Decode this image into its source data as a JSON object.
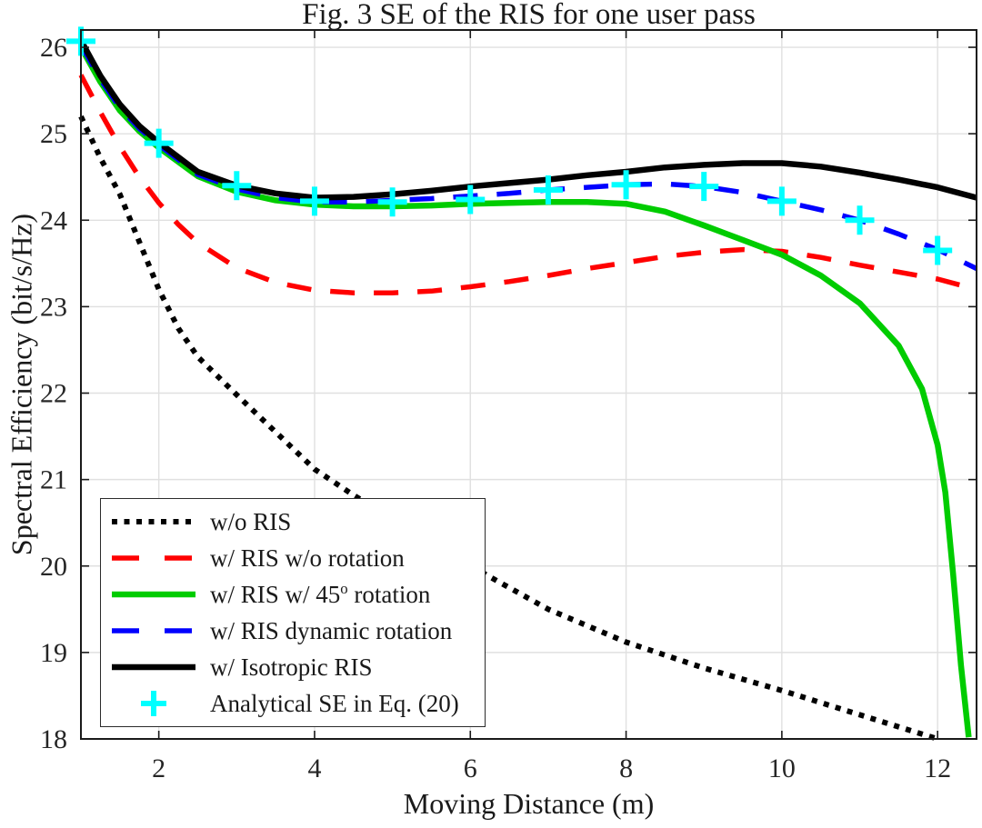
{
  "chart_data": {
    "type": "line",
    "title": "Fig. 3  SE of the RIS for one user pass",
    "xlabel": "Moving Distance (m)",
    "ylabel": "Spectral Efficiency (bit/s/Hz)",
    "xlim": [
      1,
      12.5
    ],
    "ylim": [
      18,
      26.2
    ],
    "xticks": [
      2,
      4,
      6,
      8,
      10,
      12
    ],
    "yticks": [
      18,
      19,
      20,
      21,
      22,
      23,
      24,
      25,
      26
    ],
    "grid": true,
    "legend_position": "bottom-left",
    "colors": {
      "grid": "#e0e0e0",
      "axis": "#1a1a1a",
      "tick_text": "#262626",
      "background": "#ffffff"
    },
    "series": [
      {
        "id": "wo-ris",
        "label": "w/o RIS",
        "color": "#000000",
        "style": "dotted",
        "width": 6,
        "x": [
          1,
          1.25,
          1.5,
          1.75,
          2,
          2.25,
          2.5,
          3,
          3.5,
          4,
          4.5,
          5,
          5.5,
          6.2,
          7,
          8,
          9,
          10,
          11,
          12
        ],
        "y": [
          25.2,
          24.72,
          24.3,
          23.75,
          23.2,
          22.75,
          22.42,
          21.98,
          21.55,
          21.12,
          20.82,
          20.55,
          20.32,
          19.9,
          19.5,
          19.12,
          18.82,
          18.56,
          18.28,
          18.0
        ]
      },
      {
        "id": "ris-wo-rotation",
        "label": "w/ RIS w/o rotation",
        "color": "#ff0000",
        "style": "dashed",
        "width": 5.5,
        "x": [
          1,
          1.25,
          1.5,
          1.75,
          2,
          2.25,
          2.5,
          3,
          3.5,
          4,
          4.5,
          5,
          5.5,
          6,
          6.5,
          7,
          7.5,
          8,
          8.5,
          9,
          9.5,
          10,
          10.5,
          11,
          11.5,
          12,
          12.5
        ],
        "y": [
          25.68,
          25.25,
          24.85,
          24.5,
          24.2,
          23.95,
          23.74,
          23.45,
          23.28,
          23.19,
          23.16,
          23.16,
          23.18,
          23.23,
          23.29,
          23.36,
          23.44,
          23.51,
          23.58,
          23.63,
          23.66,
          23.64,
          23.57,
          23.48,
          23.4,
          23.32,
          23.2
        ]
      },
      {
        "id": "ris-45-rotation",
        "label": "w/ RIS w/ 45o rotation",
        "label_parts": {
          "pre": "w/ RIS w/ 45",
          "sup": "o",
          "post": " rotation"
        },
        "color": "#00cc00",
        "style": "solid",
        "width": 6.5,
        "x": [
          1,
          1.25,
          1.5,
          1.75,
          2,
          2.5,
          3,
          3.5,
          4,
          4.5,
          5,
          5.5,
          6,
          6.5,
          7,
          7.5,
          8,
          8.5,
          9,
          9.5,
          10,
          10.5,
          11,
          11.5,
          11.8,
          12,
          12.1,
          12.2,
          12.3,
          12.4
        ],
        "y": [
          26.0,
          25.6,
          25.27,
          25.03,
          24.84,
          24.51,
          24.33,
          24.23,
          24.18,
          24.16,
          24.16,
          24.17,
          24.19,
          24.2,
          24.21,
          24.21,
          24.19,
          24.1,
          23.94,
          23.77,
          23.6,
          23.36,
          23.04,
          22.55,
          22.05,
          21.4,
          20.85,
          19.9,
          18.85,
          18.02
        ]
      },
      {
        "id": "ris-dynamic-rotation",
        "label": "w/ RIS dynamic rotation",
        "color": "#0000ff",
        "style": "dashed",
        "width": 5.5,
        "x": [
          1,
          1.25,
          1.5,
          1.75,
          2,
          2.5,
          3,
          3.5,
          4,
          4.5,
          5,
          5.5,
          6,
          6.5,
          7,
          7.5,
          8,
          8.5,
          9,
          9.5,
          10,
          10.5,
          11,
          11.5,
          12,
          12.5
        ],
        "y": [
          26.03,
          25.63,
          25.3,
          25.06,
          24.87,
          24.53,
          24.36,
          24.26,
          24.21,
          24.21,
          24.23,
          24.25,
          24.28,
          24.31,
          24.35,
          24.38,
          24.41,
          24.42,
          24.39,
          24.32,
          24.22,
          24.12,
          24.0,
          23.84,
          23.66,
          23.44
        ]
      },
      {
        "id": "isotropic-ris",
        "label": "w/ Isotropic RIS",
        "color": "#000000",
        "style": "solid",
        "width": 6.5,
        "x": [
          1,
          1.25,
          1.5,
          1.75,
          2,
          2.5,
          3,
          3.5,
          4,
          4.5,
          5,
          5.5,
          6,
          6.5,
          7,
          7.5,
          8,
          8.5,
          9,
          9.5,
          10,
          10.5,
          11,
          11.5,
          12,
          12.5
        ],
        "y": [
          26.08,
          25.67,
          25.34,
          25.09,
          24.9,
          24.56,
          24.4,
          24.31,
          24.26,
          24.27,
          24.3,
          24.34,
          24.39,
          24.43,
          24.47,
          24.52,
          24.56,
          24.61,
          24.64,
          24.66,
          24.66,
          24.62,
          24.55,
          24.47,
          24.38,
          24.26
        ]
      },
      {
        "id": "analytical-se",
        "label": "Analytical SE in Eq. (20)",
        "color": "#00ffff",
        "style": "plus-marker",
        "width": 6,
        "marker_size": 16,
        "x": [
          1,
          2,
          3,
          4,
          5,
          6,
          7,
          8,
          9,
          10,
          11,
          12
        ],
        "y": [
          26.07,
          24.89,
          24.4,
          24.22,
          24.21,
          24.24,
          24.35,
          24.41,
          24.39,
          24.22,
          24.0,
          23.65
        ]
      }
    ]
  }
}
